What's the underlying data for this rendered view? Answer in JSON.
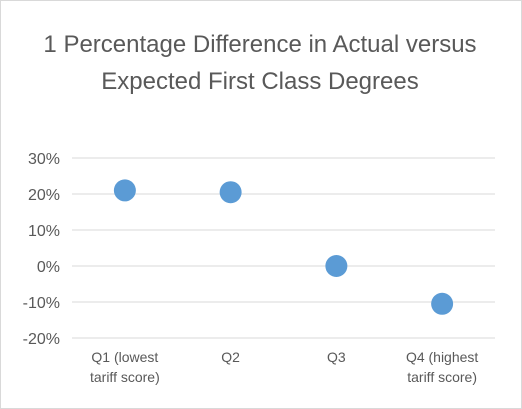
{
  "chart_data": {
    "type": "scatter",
    "title": "1 Percentage Difference in Actual versus Expected First Class Degrees",
    "xlabel": "",
    "ylabel": "",
    "categories": [
      "Q1 (lowest tariff score)",
      "Q2",
      "Q3",
      "Q4 (highest tariff score)"
    ],
    "category_label_lines": [
      [
        "Q1 (lowest",
        "tariff score)"
      ],
      [
        "Q2"
      ],
      [
        "Q3"
      ],
      [
        "Q4 (highest",
        "tariff score)"
      ]
    ],
    "values": [
      21,
      20.5,
      0,
      -10.5
    ],
    "ylim": [
      -20,
      30
    ],
    "yticks": [
      -20,
      -10,
      0,
      10,
      20,
      30
    ],
    "ytick_labels": [
      "-20%",
      "-10%",
      "0%",
      "10%",
      "20%",
      "30%"
    ],
    "grid": true,
    "legend": "none",
    "colors": {
      "marker": "#5b9bd5",
      "grid": "#d9d9d9",
      "text": "#595959"
    }
  }
}
